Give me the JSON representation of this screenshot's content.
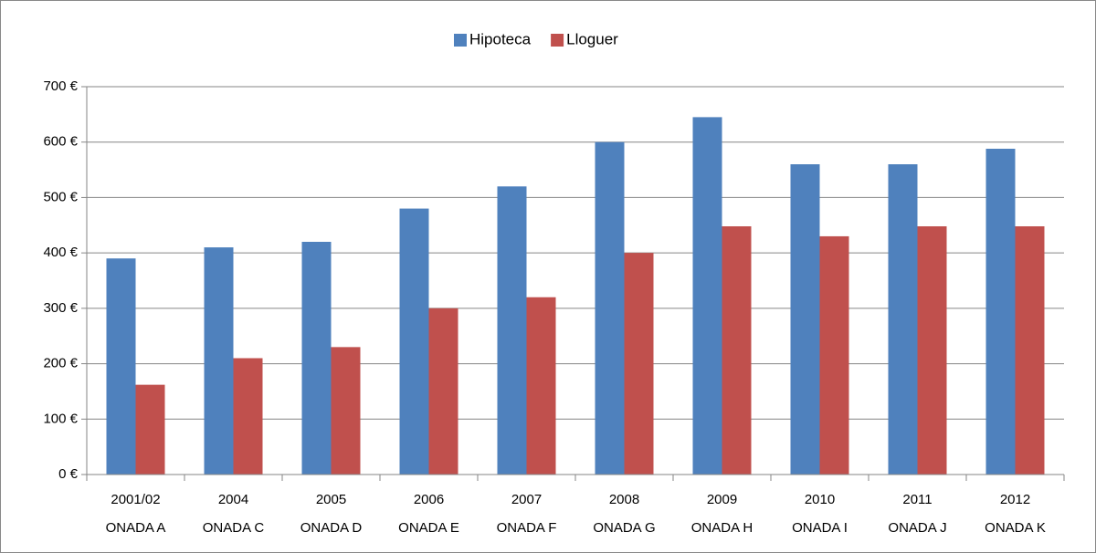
{
  "chart_data": {
    "type": "bar",
    "categories": [
      [
        "2001/02",
        "ONADA A"
      ],
      [
        "2004",
        "ONADA C"
      ],
      [
        "2005",
        "ONADA D"
      ],
      [
        "2006",
        "ONADA E"
      ],
      [
        "2007",
        "ONADA F"
      ],
      [
        "2008",
        "ONADA G"
      ],
      [
        "2009",
        "ONADA H"
      ],
      [
        "2010",
        "ONADA I"
      ],
      [
        "2011",
        "ONADA J"
      ],
      [
        "2012",
        "ONADA K"
      ]
    ],
    "series": [
      {
        "name": "Hipoteca",
        "color": "#4f81bd",
        "values": [
          390,
          410,
          420,
          480,
          520,
          600,
          645,
          560,
          560,
          588
        ]
      },
      {
        "name": "Lloguer",
        "color": "#c0504d",
        "values": [
          162,
          210,
          230,
          300,
          320,
          400,
          448,
          430,
          448,
          448
        ]
      }
    ],
    "ylim": [
      0,
      700
    ],
    "yticks": [
      {
        "value": 0,
        "label": "0 €"
      },
      {
        "value": 100,
        "label": "100 €"
      },
      {
        "value": 200,
        "label": "200 €"
      },
      {
        "value": 300,
        "label": "300 €"
      },
      {
        "value": 400,
        "label": "400 €"
      },
      {
        "value": 500,
        "label": "500 €"
      },
      {
        "value": 600,
        "label": "600 €"
      },
      {
        "value": 700,
        "label": "700 €"
      }
    ],
    "grid": true,
    "legend": "top"
  }
}
